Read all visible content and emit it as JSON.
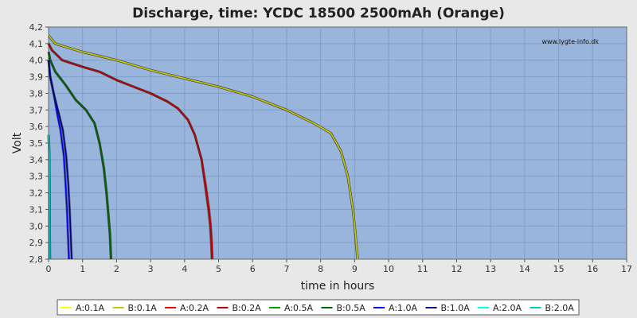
{
  "chart_data": {
    "type": "line",
    "title": "Discharge, time: YCDC 18500 2500mAh (Orange)",
    "xlabel": "time in hours",
    "ylabel": "Volt",
    "watermark": "www.lygte-info.dk",
    "xlim": [
      0,
      17
    ],
    "ylim": [
      2.8,
      4.2
    ],
    "xticks": [
      "0",
      "1",
      "2",
      "3",
      "4",
      "5",
      "6",
      "7",
      "8",
      "9",
      "10",
      "11",
      "12",
      "13",
      "14",
      "15",
      "16",
      "17"
    ],
    "yticks": [
      "2,8",
      "2,9",
      "3,0",
      "3,1",
      "3,2",
      "3,3",
      "3,4",
      "3,5",
      "3,6",
      "3,7",
      "3,8",
      "3,9",
      "4,0",
      "4,1",
      "4,2"
    ],
    "grid": true,
    "legend_position": "bottom",
    "colors": {
      "plot_bg": "#9ab5dc",
      "grid": "#7f9fcc",
      "page_bg": "#e8e8e8"
    },
    "series": [
      {
        "name": "A:0.1A",
        "color": "#ffff00",
        "x": [
          0,
          0.2,
          0.5,
          1,
          2,
          3,
          4,
          5,
          6,
          7,
          7.8,
          8.3,
          8.6,
          8.8,
          8.95,
          9.02,
          9.06,
          9.08
        ],
        "y": [
          4.15,
          4.1,
          4.08,
          4.05,
          4.0,
          3.94,
          3.89,
          3.84,
          3.78,
          3.7,
          3.62,
          3.56,
          3.45,
          3.3,
          3.1,
          2.95,
          2.85,
          2.8
        ]
      },
      {
        "name": "B:0.1A",
        "color": "#c8c800",
        "x": [
          0,
          0.2,
          0.5,
          1,
          2,
          3,
          4,
          5,
          6,
          7,
          7.8,
          8.3,
          8.6,
          8.8,
          8.95,
          9.03,
          9.07,
          9.1
        ],
        "y": [
          4.15,
          4.1,
          4.08,
          4.05,
          4.0,
          3.94,
          3.89,
          3.84,
          3.78,
          3.7,
          3.62,
          3.56,
          3.45,
          3.3,
          3.1,
          2.95,
          2.85,
          2.8
        ]
      },
      {
        "name": "A:0.2A",
        "color": "#ff0000",
        "x": [
          0,
          0.1,
          0.4,
          1,
          1.5,
          2,
          2.5,
          3,
          3.5,
          3.8,
          4.1,
          4.3,
          4.5,
          4.6,
          4.7,
          4.75,
          4.78,
          4.8
        ],
        "y": [
          4.1,
          4.06,
          4.0,
          3.96,
          3.93,
          3.88,
          3.84,
          3.8,
          3.75,
          3.71,
          3.64,
          3.55,
          3.4,
          3.25,
          3.1,
          3.0,
          2.9,
          2.8
        ]
      },
      {
        "name": "B:0.2A",
        "color": "#c00000",
        "x": [
          0,
          0.1,
          0.4,
          1,
          1.5,
          2,
          2.5,
          3,
          3.5,
          3.8,
          4.1,
          4.3,
          4.5,
          4.62,
          4.72,
          4.77,
          4.8,
          4.82
        ],
        "y": [
          4.1,
          4.06,
          4.0,
          3.96,
          3.93,
          3.88,
          3.84,
          3.8,
          3.75,
          3.71,
          3.64,
          3.55,
          3.4,
          3.25,
          3.1,
          3.0,
          2.9,
          2.8
        ]
      },
      {
        "name": "A:0.5A",
        "color": "#00a000",
        "x": [
          0,
          0.05,
          0.2,
          0.5,
          0.8,
          1.1,
          1.35,
          1.5,
          1.62,
          1.7,
          1.76,
          1.8,
          1.83
        ],
        "y": [
          4.05,
          4.0,
          3.93,
          3.85,
          3.76,
          3.7,
          3.62,
          3.5,
          3.35,
          3.2,
          3.05,
          2.95,
          2.8
        ]
      },
      {
        "name": "B:0.5A",
        "color": "#006400",
        "x": [
          0,
          0.05,
          0.2,
          0.5,
          0.8,
          1.1,
          1.35,
          1.5,
          1.63,
          1.71,
          1.77,
          1.81,
          1.84
        ],
        "y": [
          4.05,
          4.0,
          3.93,
          3.85,
          3.76,
          3.7,
          3.62,
          3.5,
          3.35,
          3.2,
          3.05,
          2.95,
          2.8
        ]
      },
      {
        "name": "A:1.0A",
        "color": "#0000ff",
        "x": [
          0,
          0.05,
          0.15,
          0.25,
          0.35,
          0.45,
          0.5,
          0.54,
          0.57,
          0.6
        ],
        "y": [
          4.0,
          3.9,
          3.8,
          3.68,
          3.58,
          3.42,
          3.25,
          3.1,
          2.95,
          2.8
        ]
      },
      {
        "name": "B:1.0A",
        "color": "#000090",
        "x": [
          0,
          0.05,
          0.15,
          0.3,
          0.42,
          0.52,
          0.58,
          0.62,
          0.65,
          0.68
        ],
        "y": [
          4.0,
          3.9,
          3.8,
          3.68,
          3.58,
          3.42,
          3.25,
          3.1,
          2.95,
          2.8
        ]
      },
      {
        "name": "A:2.0A",
        "color": "#00ffff",
        "x": [
          0,
          0.02,
          0.03,
          0.04
        ],
        "y": [
          3.55,
          3.45,
          3.1,
          2.8
        ]
      },
      {
        "name": "B:2.0A",
        "color": "#00c8c8",
        "x": [
          0,
          0.02,
          0.03,
          0.04
        ],
        "y": [
          3.55,
          3.45,
          3.1,
          2.8
        ]
      }
    ]
  }
}
